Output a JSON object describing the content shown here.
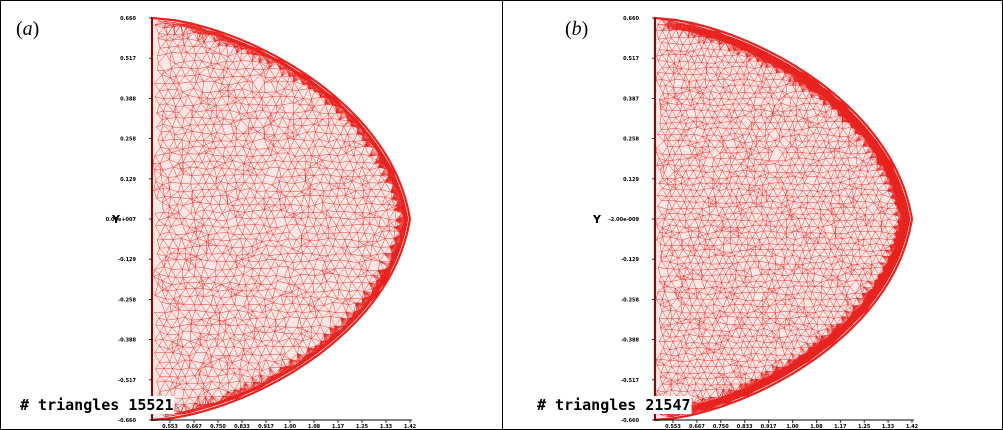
{
  "panels": [
    {
      "label_prefix": "(",
      "label_letter": "a",
      "label_suffix": ")",
      "triangles_text": "# triangles 15521",
      "y_axis_label": "Y",
      "y_ticks": [
        "0.660",
        "0.517",
        "0.388",
        "0.258",
        "0.129",
        "0.00e+007",
        "-0.129",
        "-0.258",
        "-0.388",
        "-0.517",
        "-0.660"
      ],
      "x_ticks": [
        "0.553",
        "0.667",
        "0.750",
        "0.833",
        "0.917",
        "1.00",
        "1.08",
        "1.17",
        "1.25",
        "1.33",
        "1.42"
      ],
      "mesh_color": "#e8231f",
      "mesh_density": 15521
    },
    {
      "label_prefix": "(",
      "label_letter": "b",
      "label_suffix": ")",
      "triangles_text": "# triangles 21547",
      "y_axis_label": "Y",
      "y_ticks": [
        "0.660",
        "0.517",
        "0.387",
        "0.258",
        "0.129",
        "-2.00e-009",
        "-0.129",
        "-0.258",
        "-0.388",
        "-0.517",
        "-0.660"
      ],
      "x_ticks": [
        "0.553",
        "0.667",
        "0.750",
        "0.833",
        "0.917",
        "1.00",
        "1.08",
        "1.17",
        "1.25",
        "1.33",
        "1.42"
      ],
      "mesh_color": "#e8231f",
      "mesh_density": 21547
    }
  ]
}
